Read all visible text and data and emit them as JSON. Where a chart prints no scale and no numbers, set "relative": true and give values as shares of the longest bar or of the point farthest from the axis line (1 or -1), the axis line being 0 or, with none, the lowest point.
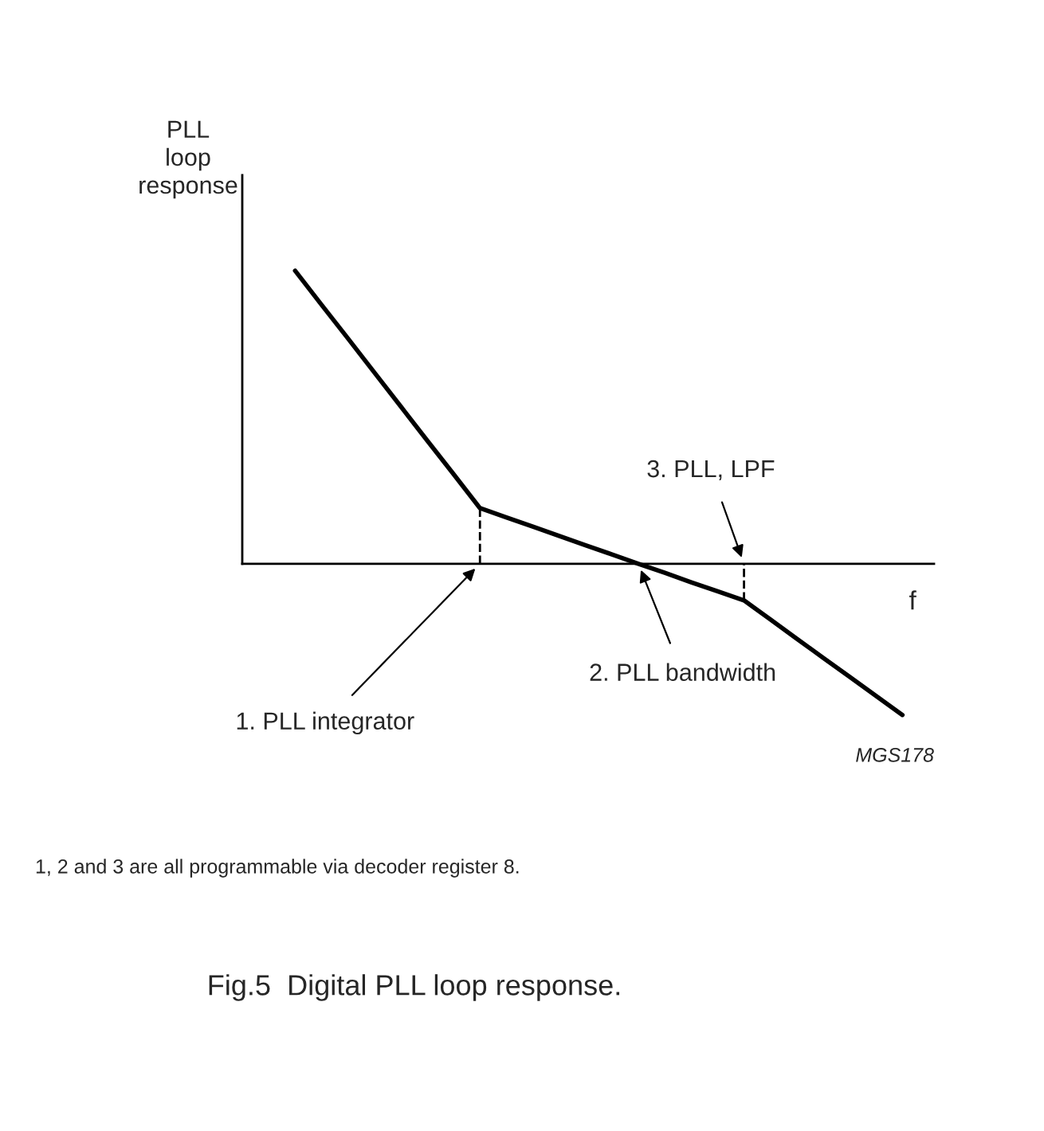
{
  "chart_data": {
    "type": "line",
    "relative": true,
    "title": "Fig.5  Digital PLL loop response.",
    "xlabel": "f",
    "ylabel": "PLL\nloop\nresponse",
    "categories": [
      null,
      null,
      null,
      null,
      null,
      null,
      null,
      null,
      null,
      null,
      null,
      null,
      null,
      null,
      null,
      null,
      null,
      null,
      null,
      null,
      null,
      null,
      null,
      null
    ],
    "line_style": "solid",
    "series": [
      {
        "color": "#000000",
        "values": [
          1,
          0.884,
          0.769,
          0.653,
          0.537,
          0.421,
          0.306,
          0.19,
          0.158,
          0.127,
          0.095,
          0.063,
          0.032,
          0,
          -0.031,
          -0.063,
          -0.094,
          -0.125,
          -0.19,
          -0.256,
          -0.321,
          -0.386,
          -0.451,
          -0.516
        ]
      }
    ],
    "annotations": [
      "1. PLL integrator",
      "2. PLL bandwidth",
      "3. PLL, LPF",
      "MGS178",
      "1, 2 and 3 are all programmable via decoder register 8."
    ]
  }
}
